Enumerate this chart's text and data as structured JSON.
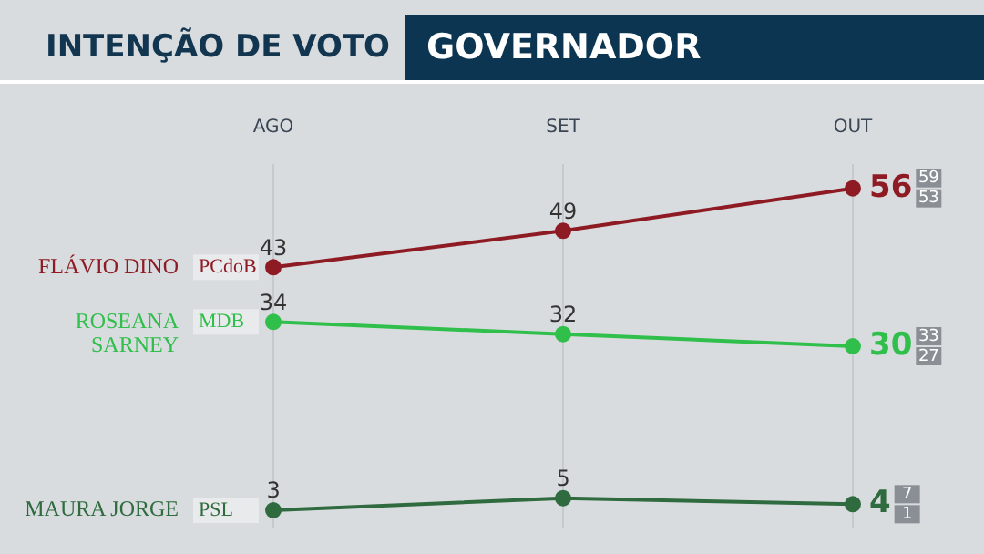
{
  "chart_data": {
    "type": "line",
    "title": "INTENÇÃO DE VOTO",
    "subtitle": "GOVERNADOR",
    "categories": [
      "AGO",
      "SET",
      "OUT"
    ],
    "series": [
      {
        "name": "FLÁVIO DINO",
        "color": "#8e1b24",
        "values": [
          43,
          49,
          56
        ]
      },
      {
        "name": "ROSEANA SARNEY",
        "color": "#2fbf4a",
        "values": [
          34,
          32,
          30
        ]
      },
      {
        "name": "MAURA JORGE",
        "color": "#2f6b3f",
        "values": [
          3,
          5,
          4
        ]
      }
    ],
    "annotations": [
      "PCdoB",
      "MDB",
      "PSL",
      "59",
      "53",
      "33",
      "27",
      "7",
      "1"
    ],
    "ylim": [
      0,
      60
    ],
    "tick_labels": "x",
    "grid": "x",
    "marker": "circle",
    "data_labels": true,
    "legend": false
  }
}
